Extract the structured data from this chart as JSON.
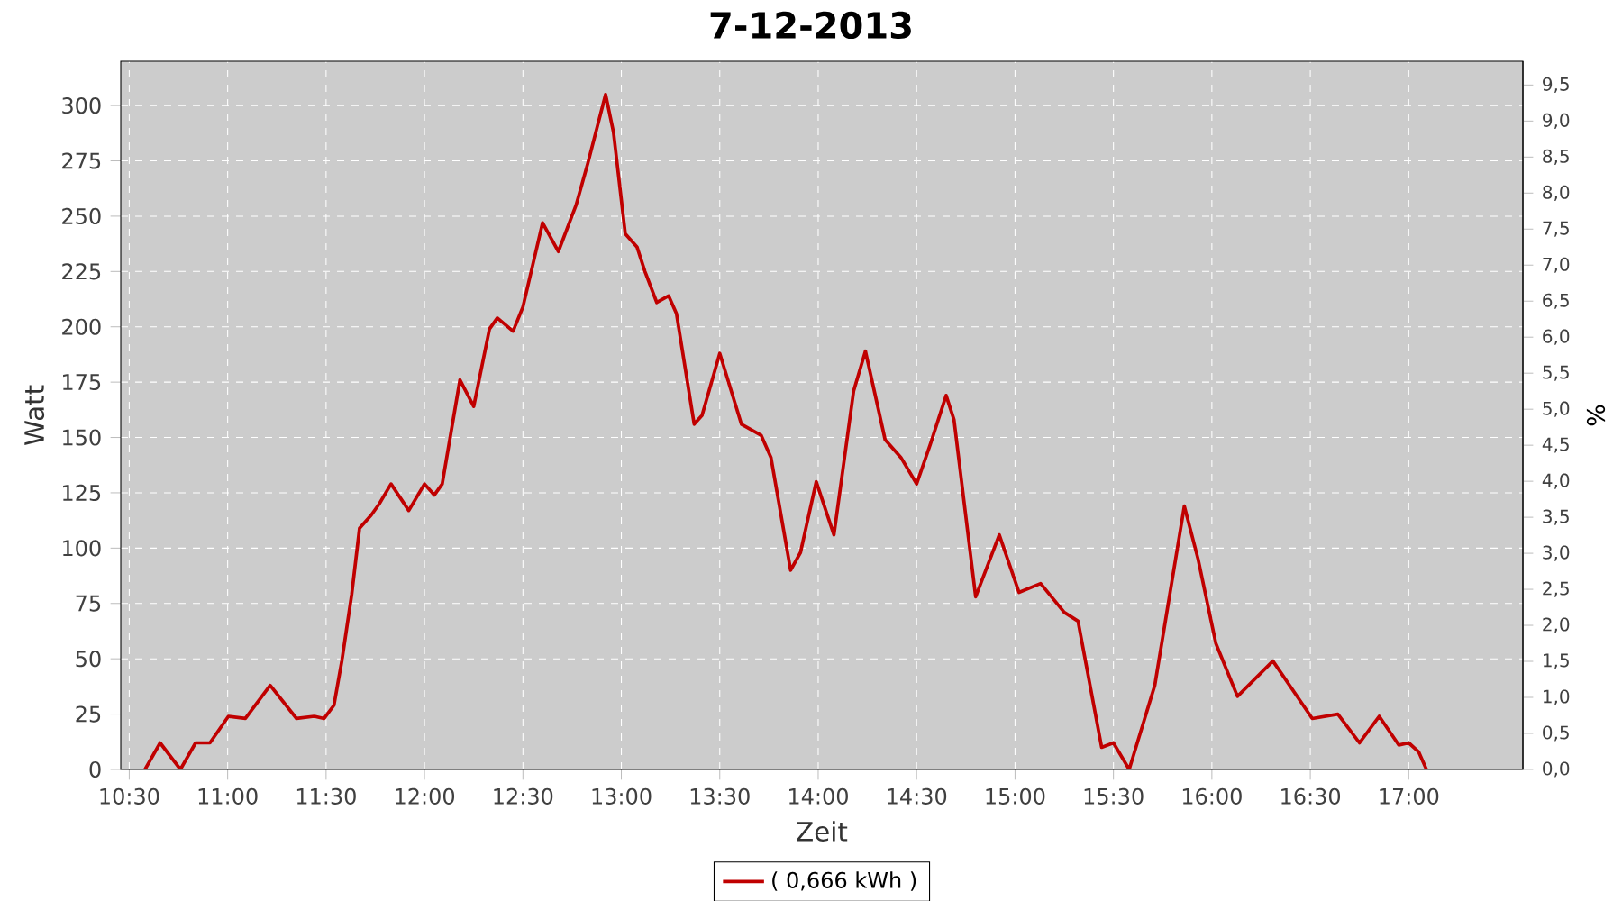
{
  "chart_data": {
    "type": "line",
    "title": "7-12-2013",
    "xlabel": "Zeit",
    "ylabel": "Watt",
    "y2label": "%",
    "x": [
      10.58,
      10.657,
      10.76,
      10.837,
      10.91,
      11.004,
      11.09,
      11.216,
      11.35,
      11.44,
      11.49,
      11.54,
      11.58,
      11.63,
      11.67,
      11.73,
      11.77,
      11.83,
      11.92,
      12.0,
      12.05,
      12.09,
      12.18,
      12.25,
      12.33,
      12.37,
      12.45,
      12.5,
      12.6,
      12.68,
      12.77,
      12.83,
      12.92,
      12.96,
      13.02,
      13.08,
      13.12,
      13.18,
      13.24,
      13.28,
      13.37,
      13.41,
      13.5,
      13.61,
      13.71,
      13.76,
      13.86,
      13.91,
      13.99,
      14.08,
      14.18,
      14.24,
      14.34,
      14.42,
      14.5,
      14.57,
      14.65,
      14.69,
      14.8,
      14.92,
      15.02,
      15.13,
      15.25,
      15.32,
      15.44,
      15.5,
      15.58,
      15.71,
      15.86,
      15.93,
      16.02,
      16.13,
      16.31,
      16.51,
      16.64,
      16.75,
      16.85,
      16.95,
      17.0,
      17.05,
      17.09
    ],
    "series": [
      {
        "name": "( 0,666 kWh )",
        "color": "#c00000",
        "values": [
          0,
          12,
          0,
          12,
          12,
          24,
          23,
          38,
          23,
          24,
          23,
          29,
          49,
          79,
          109,
          115,
          120,
          129,
          117,
          129,
          124,
          129,
          176,
          164,
          199,
          204,
          198,
          209,
          247,
          234,
          255,
          274,
          305,
          288,
          242,
          236,
          225,
          211,
          214,
          206,
          156,
          160,
          188,
          156,
          151,
          141,
          90,
          98,
          130,
          106,
          171,
          189,
          149,
          141,
          129,
          147,
          169,
          158,
          78,
          106,
          80,
          84,
          71,
          67,
          10,
          12,
          0,
          38,
          119,
          95,
          57,
          33,
          49,
          23,
          25,
          12,
          24,
          11,
          12,
          8,
          0
        ]
      }
    ],
    "xlim": [
      10.457,
      17.58
    ],
    "ylim": [
      0,
      320
    ],
    "y2lim": [
      0,
      9.83
    ],
    "xticks": [
      {
        "value": 10.5,
        "label": "10:30"
      },
      {
        "value": 11,
        "label": "11:00"
      },
      {
        "value": 11.5,
        "label": "11:30"
      },
      {
        "value": 12,
        "label": "12:00"
      },
      {
        "value": 12.5,
        "label": "12:30"
      },
      {
        "value": 13,
        "label": "13:00"
      },
      {
        "value": 13.5,
        "label": "13:30"
      },
      {
        "value": 14,
        "label": "14:00"
      },
      {
        "value": 14.5,
        "label": "14:30"
      },
      {
        "value": 15,
        "label": "15:00"
      },
      {
        "value": 15.5,
        "label": "15:30"
      },
      {
        "value": 16,
        "label": "16:00"
      },
      {
        "value": 16.5,
        "label": "16:30"
      },
      {
        "value": 17,
        "label": "17:00"
      }
    ],
    "yticks": [
      0,
      25,
      50,
      75,
      100,
      125,
      150,
      175,
      200,
      225,
      250,
      275,
      300
    ],
    "y2ticks": [
      {
        "value": 0,
        "label": "0,0"
      },
      {
        "value": 0.5,
        "label": "0,5"
      },
      {
        "value": 1,
        "label": "1,0"
      },
      {
        "value": 1.5,
        "label": "1,5"
      },
      {
        "value": 2,
        "label": "2,0"
      },
      {
        "value": 2.5,
        "label": "2,5"
      },
      {
        "value": 3,
        "label": "3,0"
      },
      {
        "value": 3.5,
        "label": "3,5"
      },
      {
        "value": 4,
        "label": "4,0"
      },
      {
        "value": 4.5,
        "label": "4,5"
      },
      {
        "value": 5,
        "label": "5,0"
      },
      {
        "value": 5.5,
        "label": "5,5"
      },
      {
        "value": 6,
        "label": "6,0"
      },
      {
        "value": 6.5,
        "label": "6,5"
      },
      {
        "value": 7,
        "label": "7,0"
      },
      {
        "value": 7.5,
        "label": "7,5"
      },
      {
        "value": 8,
        "label": "8,0"
      },
      {
        "value": 8.5,
        "label": "8,5"
      },
      {
        "value": 9,
        "label": "9,0"
      },
      {
        "value": 9.5,
        "label": "9,5"
      }
    ],
    "grid": true,
    "legend": "bottom"
  }
}
